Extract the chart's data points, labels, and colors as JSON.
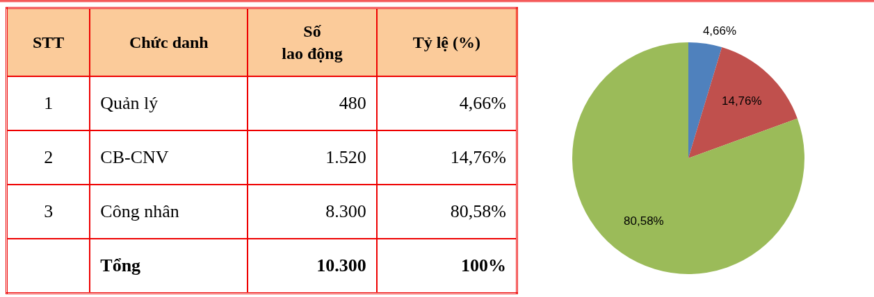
{
  "chart_data": {
    "type": "pie",
    "categories": [
      null,
      null,
      null
    ],
    "values": [
      4.66,
      14.76,
      80.58
    ],
    "colors": [
      "#4f81bd",
      "#c0504d",
      "#9bbb59"
    ],
    "value_labels": [
      "4,66%",
      "14,76%",
      "80,58%"
    ],
    "annotations": [
      "STT",
      "Chức danh",
      "Số\nlao động",
      "Tỷ lệ (%)",
      "1",
      "2",
      "3",
      "Quản lý",
      "CB-CNV",
      "Công nhân",
      "480",
      "1.520",
      "8.300",
      "Tổng",
      "10.300",
      "100%"
    ],
    "legend": false
  }
}
